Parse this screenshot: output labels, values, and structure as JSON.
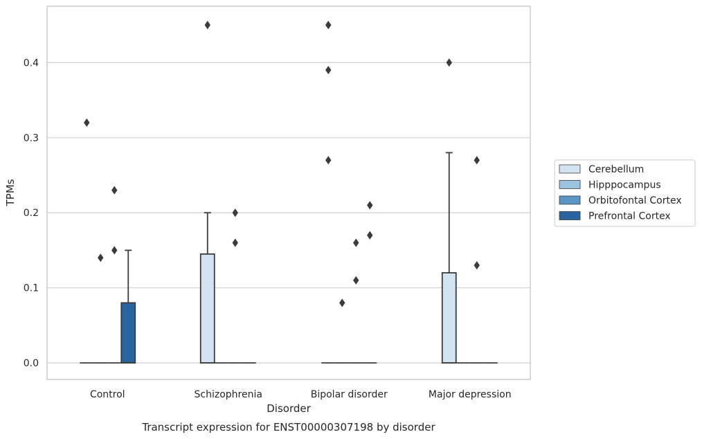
{
  "chart_data": {
    "type": "box",
    "caption": "Transcript expression for ENST00000307198 by disorder",
    "xlabel": "Disorder",
    "ylabel": "TPMs",
    "ylim": [
      -0.022,
      0.475
    ],
    "yticks": [
      0.0,
      0.1,
      0.2,
      0.3,
      0.4
    ],
    "ytick_labels": [
      "0.0",
      "0.1",
      "0.2",
      "0.3",
      "0.4"
    ],
    "grid": "horizontal",
    "categories": [
      "Control",
      "Schizophrenia",
      "Bipolar disorder",
      "Major depression"
    ],
    "series": [
      {
        "name": "Cerebellum",
        "color": "#d4e3f2",
        "boxes": [
          {
            "q1": 0,
            "median": 0,
            "q3": 0,
            "whisker_low": 0,
            "whisker_high": 0,
            "outliers": [
              0.32
            ]
          },
          {
            "q1": 0,
            "median": 0,
            "q3": 0.145,
            "whisker_low": 0,
            "whisker_high": 0.2,
            "outliers": [
              0.45
            ]
          },
          {
            "q1": 0,
            "median": 0,
            "q3": 0,
            "whisker_low": 0,
            "whisker_high": 0,
            "outliers": [
              0.45,
              0.39,
              0.27
            ]
          },
          {
            "q1": 0,
            "median": 0,
            "q3": 0.12,
            "whisker_low": 0,
            "whisker_high": 0.28,
            "outliers": [
              0.4
            ]
          }
        ]
      },
      {
        "name": "Hipppocampus",
        "color": "#9cc3dd",
        "boxes": [
          {
            "q1": 0,
            "median": 0,
            "q3": 0,
            "whisker_low": 0,
            "whisker_high": 0,
            "outliers": [
              0.14
            ]
          },
          {
            "q1": 0,
            "median": 0,
            "q3": 0,
            "whisker_low": 0,
            "whisker_high": 0,
            "outliers": []
          },
          {
            "q1": 0,
            "median": 0,
            "q3": 0,
            "whisker_low": 0,
            "whisker_high": 0,
            "outliers": [
              0.08
            ]
          },
          {
            "q1": 0,
            "median": 0,
            "q3": 0,
            "whisker_low": 0,
            "whisker_high": 0,
            "outliers": []
          }
        ]
      },
      {
        "name": "Orbitofontal Cortex",
        "color": "#5a95c4",
        "boxes": [
          {
            "q1": 0,
            "median": 0,
            "q3": 0,
            "whisker_low": 0,
            "whisker_high": 0,
            "outliers": [
              0.23,
              0.15
            ]
          },
          {
            "q1": 0,
            "median": 0,
            "q3": 0,
            "whisker_low": 0,
            "whisker_high": 0,
            "outliers": [
              0.2,
              0.16
            ]
          },
          {
            "q1": 0,
            "median": 0,
            "q3": 0,
            "whisker_low": 0,
            "whisker_high": 0,
            "outliers": [
              0.16,
              0.11
            ]
          },
          {
            "q1": 0,
            "median": 0,
            "q3": 0,
            "whisker_low": 0,
            "whisker_high": 0,
            "outliers": [
              0.27,
              0.13
            ]
          }
        ]
      },
      {
        "name": "Prefrontal Cortex",
        "color": "#2a64a0",
        "boxes": [
          {
            "q1": 0,
            "median": 0,
            "q3": 0.08,
            "whisker_low": 0,
            "whisker_high": 0.15,
            "outliers": []
          },
          {
            "q1": 0,
            "median": 0,
            "q3": 0,
            "whisker_low": 0,
            "whisker_high": 0,
            "outliers": []
          },
          {
            "q1": 0,
            "median": 0,
            "q3": 0,
            "whisker_low": 0,
            "whisker_high": 0,
            "outliers": [
              0.21,
              0.17
            ]
          },
          {
            "q1": 0,
            "median": 0,
            "q3": 0,
            "whisker_low": 0,
            "whisker_high": 0,
            "outliers": []
          }
        ]
      }
    ],
    "legend": {
      "placement": "right",
      "entries": [
        "Cerebellum",
        "Hipppocampus",
        "Orbitofontal Cortex",
        "Prefrontal Cortex"
      ]
    }
  }
}
